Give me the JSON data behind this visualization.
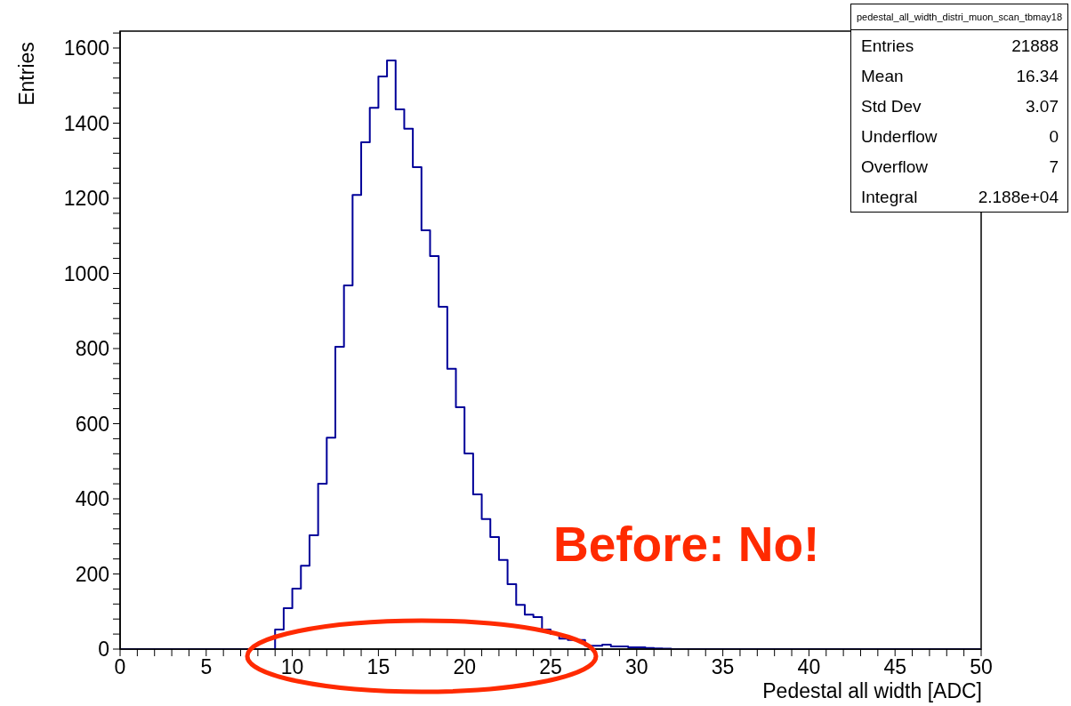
{
  "chart_data": {
    "type": "histogram",
    "title": "pedestal_all_width_distri_muon_scan_tbmay18",
    "xlabel": "Pedestal all width [ADC]",
    "ylabel": "Entries",
    "annotations": [
      "Before: No!",
      "Entries 21888",
      "Mean 16.34",
      "Std Dev 3.07",
      "Underflow 0",
      "Overflow 7",
      "Integral 2.188e+04"
    ],
    "bins": [
      0,
      0.5,
      1,
      1.5,
      2,
      2.5,
      3,
      3.5,
      4,
      4.5,
      5,
      5.5,
      6,
      6.5,
      7,
      7.5,
      8,
      8.5,
      9,
      9.5,
      10,
      10.5,
      11,
      11.5,
      12,
      12.5,
      13,
      13.5,
      14,
      14.5,
      15,
      15.5,
      16,
      16.5,
      17,
      17.5,
      18,
      18.5,
      19,
      19.5,
      20,
      20.5,
      21,
      21.5,
      22,
      22.5,
      23,
      23.5,
      24,
      24.5,
      25,
      25.5,
      26,
      26.5,
      27,
      27.5,
      28,
      28.5,
      29,
      29.5,
      30,
      30.5,
      31,
      31.5,
      32,
      32.5,
      33,
      33.5,
      34,
      34.5,
      35,
      35.5,
      36,
      36.5,
      37,
      37.5,
      38,
      38.5,
      39,
      39.5,
      40,
      40.5,
      41,
      41.5,
      42,
      42.5,
      43,
      43.5,
      44,
      44.5,
      45,
      45.5,
      46,
      46.5,
      47,
      47.5,
      48,
      48.5,
      49,
      49.5,
      50
    ],
    "values": [
      0,
      0,
      0,
      0,
      0,
      0,
      0,
      0,
      0,
      0,
      0,
      0,
      0,
      0,
      0,
      0,
      0,
      0,
      52,
      109,
      161,
      222,
      303,
      440,
      563,
      805,
      968,
      1209,
      1349,
      1441,
      1524,
      1567,
      1437,
      1385,
      1283,
      1115,
      1046,
      911,
      746,
      644,
      521,
      412,
      346,
      298,
      237,
      173,
      118,
      92,
      85,
      52,
      40,
      28,
      24,
      24,
      9,
      9,
      12,
      7,
      7,
      5,
      5,
      3,
      2,
      1,
      0,
      0,
      0,
      0,
      0,
      0,
      0,
      0,
      0,
      0,
      0,
      0,
      0,
      0,
      0,
      0,
      0,
      0,
      0,
      0,
      0,
      0,
      0,
      0,
      0,
      0,
      0,
      0,
      0,
      0,
      0,
      0,
      0,
      0,
      0,
      0
    ],
    "color": "#000099",
    "xlim": [
      0,
      50
    ],
    "ylim": [
      0,
      1645
    ],
    "xticks": [
      0,
      {
        "value": 1,
        "label": null
      },
      {
        "value": 2,
        "label": null
      },
      {
        "value": 3,
        "label": null
      },
      {
        "value": 4,
        "label": null
      },
      5,
      {
        "value": 6,
        "label": null
      },
      {
        "value": 7,
        "label": null
      },
      {
        "value": 8,
        "label": null
      },
      {
        "value": 9,
        "label": null
      },
      10,
      {
        "value": 11,
        "label": null
      },
      {
        "value": 12,
        "label": null
      },
      {
        "value": 13,
        "label": null
      },
      {
        "value": 14,
        "label": null
      },
      15,
      {
        "value": 16,
        "label": null
      },
      {
        "value": 17,
        "label": null
      },
      {
        "value": 18,
        "label": null
      },
      {
        "value": 19,
        "label": null
      },
      20,
      {
        "value": 21,
        "label": null
      },
      {
        "value": 22,
        "label": null
      },
      {
        "value": 23,
        "label": null
      },
      {
        "value": 24,
        "label": null
      },
      25,
      {
        "value": 26,
        "label": null
      },
      {
        "value": 27,
        "label": null
      },
      {
        "value": 28,
        "label": null
      },
      {
        "value": 29,
        "label": null
      },
      30,
      {
        "value": 31,
        "label": null
      },
      {
        "value": 32,
        "label": null
      },
      {
        "value": 33,
        "label": null
      },
      {
        "value": 34,
        "label": null
      },
      35,
      {
        "value": 36,
        "label": null
      },
      {
        "value": 37,
        "label": null
      },
      {
        "value": 38,
        "label": null
      },
      {
        "value": 39,
        "label": null
      },
      40,
      {
        "value": 41,
        "label": null
      },
      {
        "value": 42,
        "label": null
      },
      {
        "value": 43,
        "label": null
      },
      {
        "value": 44,
        "label": null
      },
      45,
      {
        "value": 46,
        "label": null
      },
      {
        "value": 47,
        "label": null
      },
      {
        "value": 48,
        "label": null
      },
      {
        "value": 49,
        "label": null
      },
      50
    ],
    "yticks": [
      0,
      {
        "value": 40,
        "label": null
      },
      {
        "value": 80,
        "label": null
      },
      {
        "value": 120,
        "label": null
      },
      {
        "value": 160,
        "label": null
      },
      200,
      {
        "value": 240,
        "label": null
      },
      {
        "value": 280,
        "label": null
      },
      {
        "value": 320,
        "label": null
      },
      {
        "value": 360,
        "label": null
      },
      400,
      {
        "value": 440,
        "label": null
      },
      {
        "value": 480,
        "label": null
      },
      {
        "value": 520,
        "label": null
      },
      {
        "value": 560,
        "label": null
      },
      600,
      {
        "value": 640,
        "label": null
      },
      {
        "value": 680,
        "label": null
      },
      {
        "value": 720,
        "label": null
      },
      {
        "value": 760,
        "label": null
      },
      800,
      {
        "value": 840,
        "label": null
      },
      {
        "value": 880,
        "label": null
      },
      {
        "value": 920,
        "label": null
      },
      {
        "value": 960,
        "label": null
      },
      1000,
      {
        "value": 1040,
        "label": null
      },
      {
        "value": 1080,
        "label": null
      },
      {
        "value": 1120,
        "label": null
      },
      {
        "value": 1160,
        "label": null
      },
      1200,
      {
        "value": 1240,
        "label": null
      },
      {
        "value": 1280,
        "label": null
      },
      {
        "value": 1320,
        "label": null
      },
      {
        "value": 1360,
        "label": null
      },
      1400,
      {
        "value": 1440,
        "label": null
      },
      {
        "value": 1480,
        "label": null
      },
      {
        "value": 1520,
        "label": null
      },
      {
        "value": 1560,
        "label": null
      },
      1600,
      {
        "value": 1640,
        "label": null
      }
    ]
  }
}
